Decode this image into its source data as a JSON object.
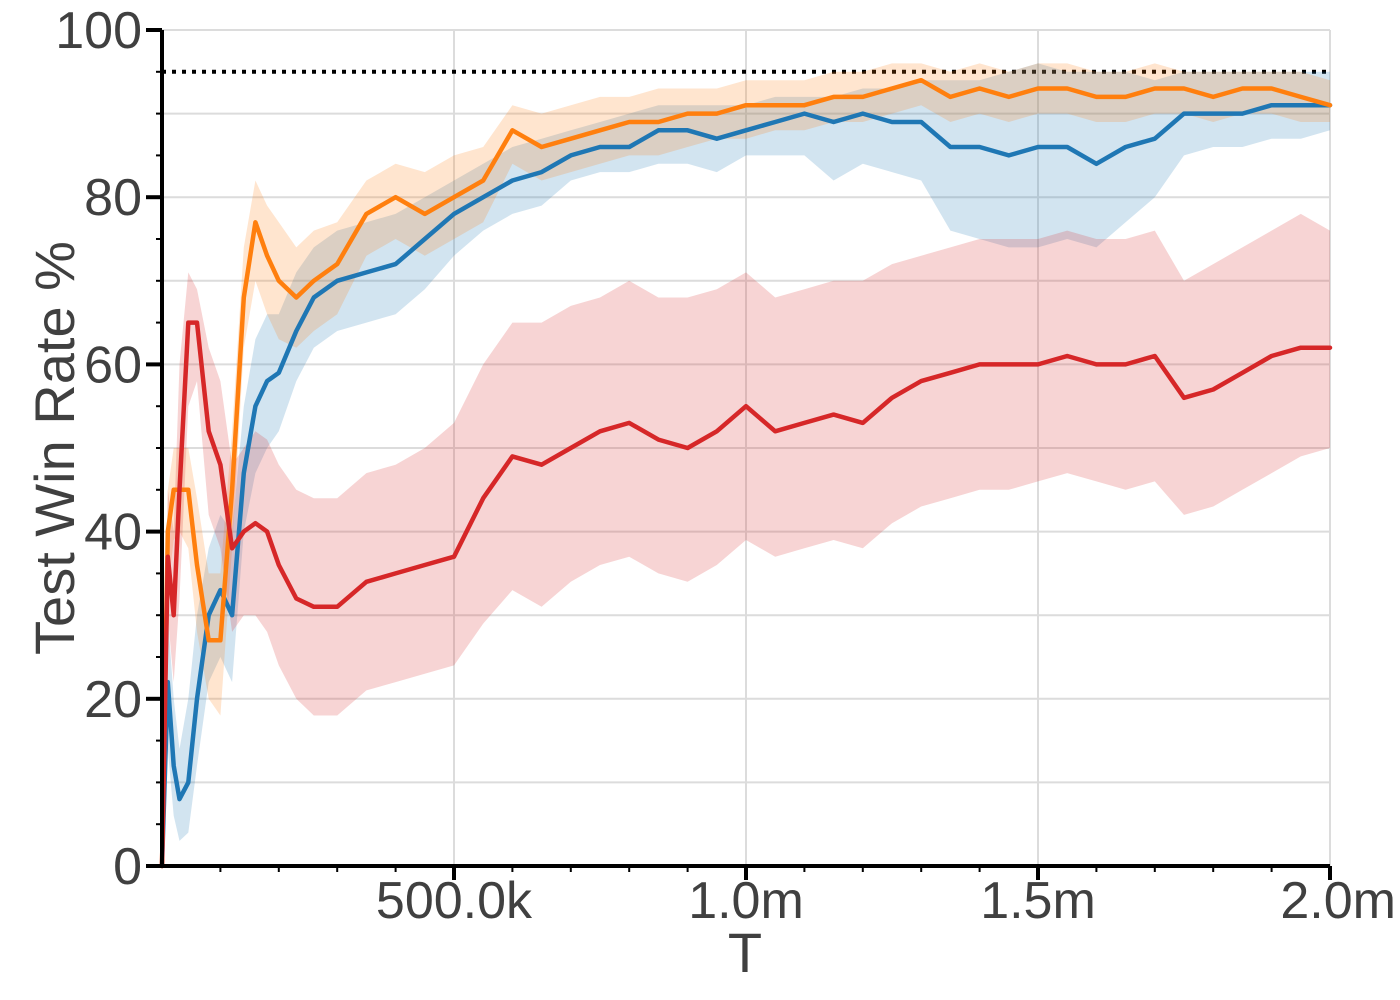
{
  "chart_data": {
    "type": "line",
    "title": "",
    "xlabel": "T",
    "ylabel": "Test Win Rate %",
    "xlim": [
      0,
      2000000
    ],
    "ylim": [
      0,
      100
    ],
    "grid": true,
    "x_ticks": [
      {
        "value": 500000,
        "label": "500.0k"
      },
      {
        "value": 1000000,
        "label": "1.0m"
      },
      {
        "value": 1500000,
        "label": "1.5m"
      },
      {
        "value": 2000000,
        "label": "2.0m"
      }
    ],
    "y_ticks": [
      {
        "value": 0,
        "label": "0"
      },
      {
        "value": 20,
        "label": "20"
      },
      {
        "value": 40,
        "label": "40"
      },
      {
        "value": 60,
        "label": "60"
      },
      {
        "value": 80,
        "label": "80"
      },
      {
        "value": 100,
        "label": "100"
      }
    ],
    "reference_line": {
      "y": 95,
      "style": "dotted",
      "color": "#000000"
    },
    "series": [
      {
        "color": "#1f77b4",
        "x": [
          0,
          10000,
          20000,
          30000,
          45000,
          60000,
          80000,
          100000,
          120000,
          140000,
          160000,
          180000,
          200000,
          230000,
          260000,
          300000,
          350000,
          400000,
          450000,
          500000,
          550000,
          600000,
          650000,
          700000,
          750000,
          800000,
          850000,
          900000,
          950000,
          1000000,
          1050000,
          1100000,
          1150000,
          1200000,
          1250000,
          1300000,
          1350000,
          1400000,
          1450000,
          1500000,
          1550000,
          1600000,
          1650000,
          1700000,
          1750000,
          1800000,
          1850000,
          1900000,
          1950000,
          2000000
        ],
        "y": [
          0,
          22,
          12,
          8,
          10,
          20,
          30,
          33,
          30,
          47,
          55,
          58,
          59,
          64,
          68,
          70,
          71,
          72,
          75,
          78,
          80,
          82,
          83,
          85,
          86,
          86,
          88,
          88,
          87,
          88,
          89,
          90,
          89,
          90,
          89,
          89,
          86,
          86,
          85,
          86,
          86,
          84,
          86,
          87,
          90,
          90,
          90,
          91,
          91,
          91
        ],
        "upper": [
          0,
          30,
          20,
          14,
          20,
          30,
          38,
          42,
          40,
          55,
          63,
          66,
          66,
          71,
          74,
          76,
          77,
          78,
          80,
          82,
          84,
          86,
          87,
          88,
          89,
          90,
          91,
          91,
          91,
          91,
          92,
          92,
          92,
          93,
          93,
          94,
          94,
          94,
          95,
          96,
          95,
          95,
          95,
          94,
          95,
          95,
          95,
          95,
          95,
          95
        ],
        "lower": [
          0,
          14,
          6,
          3,
          4,
          12,
          22,
          25,
          22,
          40,
          47,
          50,
          52,
          58,
          62,
          64,
          65,
          66,
          69,
          73,
          76,
          78,
          79,
          82,
          83,
          83,
          84,
          84,
          83,
          85,
          85,
          85,
          82,
          84,
          83,
          82,
          76,
          75,
          74,
          74,
          75,
          74,
          77,
          80,
          85,
          86,
          86,
          87,
          87,
          88
        ]
      },
      {
        "color": "#ff7f0e",
        "x": [
          0,
          10000,
          20000,
          30000,
          45000,
          60000,
          80000,
          100000,
          120000,
          140000,
          160000,
          180000,
          200000,
          230000,
          260000,
          300000,
          350000,
          400000,
          450000,
          500000,
          550000,
          600000,
          650000,
          700000,
          750000,
          800000,
          850000,
          900000,
          950000,
          1000000,
          1050000,
          1100000,
          1150000,
          1200000,
          1250000,
          1300000,
          1350000,
          1400000,
          1450000,
          1500000,
          1550000,
          1600000,
          1650000,
          1700000,
          1750000,
          1800000,
          1850000,
          1900000,
          1950000,
          2000000
        ],
        "y": [
          0,
          40,
          45,
          45,
          45,
          36,
          27,
          27,
          45,
          68,
          77,
          73,
          70,
          68,
          70,
          72,
          78,
          80,
          78,
          80,
          82,
          88,
          86,
          87,
          88,
          89,
          89,
          90,
          90,
          91,
          91,
          91,
          92,
          92,
          93,
          94,
          92,
          93,
          92,
          93,
          93,
          92,
          92,
          93,
          93,
          92,
          93,
          93,
          92,
          91
        ],
        "upper": [
          0,
          45,
          50,
          50,
          50,
          44,
          35,
          35,
          52,
          74,
          82,
          79,
          77,
          74,
          76,
          77,
          82,
          84,
          83,
          85,
          86,
          91,
          90,
          91,
          92,
          92,
          93,
          93,
          93,
          94,
          94,
          94,
          95,
          95,
          96,
          96,
          95,
          96,
          95,
          96,
          96,
          95,
          95,
          96,
          95,
          95,
          95,
          95,
          95,
          94
        ],
        "lower": [
          0,
          33,
          39,
          40,
          38,
          28,
          20,
          18,
          38,
          62,
          70,
          66,
          63,
          62,
          64,
          66,
          73,
          75,
          73,
          75,
          77,
          84,
          82,
          83,
          84,
          85,
          85,
          86,
          87,
          87,
          88,
          88,
          89,
          89,
          90,
          91,
          89,
          90,
          89,
          90,
          90,
          89,
          89,
          90,
          90,
          89,
          90,
          90,
          89,
          89
        ]
      },
      {
        "color": "#d62728",
        "x": [
          0,
          10000,
          20000,
          30000,
          45000,
          60000,
          80000,
          100000,
          120000,
          140000,
          160000,
          180000,
          200000,
          230000,
          260000,
          300000,
          350000,
          400000,
          450000,
          500000,
          550000,
          600000,
          650000,
          700000,
          750000,
          800000,
          850000,
          900000,
          950000,
          1000000,
          1050000,
          1100000,
          1150000,
          1200000,
          1250000,
          1300000,
          1350000,
          1400000,
          1450000,
          1500000,
          1550000,
          1600000,
          1650000,
          1700000,
          1750000,
          1800000,
          1850000,
          1900000,
          1950000,
          2000000
        ],
        "y": [
          0,
          37,
          30,
          45,
          65,
          65,
          52,
          48,
          38,
          40,
          41,
          40,
          36,
          32,
          31,
          31,
          34,
          35,
          36,
          37,
          44,
          49,
          48,
          50,
          52,
          53,
          51,
          50,
          52,
          55,
          52,
          53,
          54,
          53,
          56,
          58,
          59,
          60,
          60,
          60,
          61,
          60,
          60,
          61,
          56,
          57,
          59,
          61,
          62,
          62
        ],
        "upper": [
          0,
          45,
          40,
          60,
          71,
          69,
          62,
          58,
          48,
          50,
          52,
          51,
          48,
          45,
          44,
          44,
          47,
          48,
          50,
          53,
          60,
          65,
          65,
          67,
          68,
          70,
          68,
          68,
          69,
          71,
          68,
          69,
          70,
          70,
          72,
          73,
          74,
          75,
          75,
          75,
          76,
          75,
          75,
          76,
          70,
          72,
          74,
          76,
          78,
          76
        ],
        "lower": [
          0,
          30,
          22,
          32,
          55,
          58,
          42,
          38,
          28,
          30,
          30,
          28,
          24,
          20,
          18,
          18,
          21,
          22,
          23,
          24,
          29,
          33,
          31,
          34,
          36,
          37,
          35,
          34,
          36,
          39,
          37,
          38,
          39,
          38,
          41,
          43,
          44,
          45,
          45,
          46,
          47,
          46,
          45,
          46,
          42,
          43,
          45,
          47,
          49,
          50
        ]
      }
    ]
  }
}
